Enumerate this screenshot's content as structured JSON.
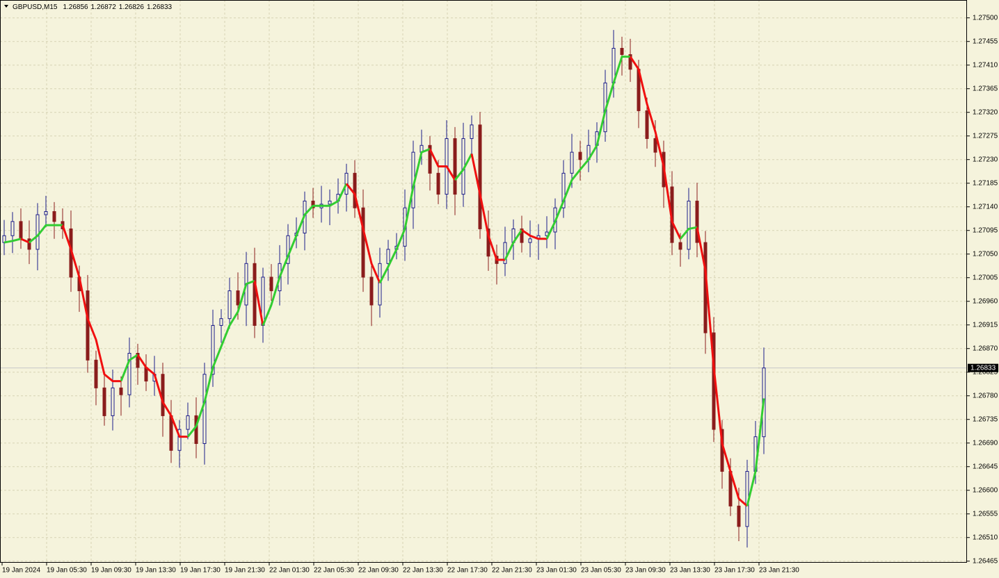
{
  "chart_data": {
    "type": "candlestick",
    "symbol": "GBPUSD,M15",
    "quote": [
      "1.26856",
      "1.26872",
      "1.26826",
      "1.26833"
    ],
    "current_price": {
      "value": 1.26833,
      "label": "1.26833"
    },
    "ylim": [
      1.26462,
      1.27534
    ],
    "yticks": [
      {
        "value": 1.275,
        "label": "1.27500"
      },
      {
        "value": 1.27455,
        "label": "1.27455"
      },
      {
        "value": 1.2741,
        "label": "1.27410"
      },
      {
        "value": 1.27365,
        "label": "1.27365"
      },
      {
        "value": 1.2732,
        "label": "1.27320"
      },
      {
        "value": 1.27275,
        "label": "1.27275"
      },
      {
        "value": 1.2723,
        "label": "1.27230"
      },
      {
        "value": 1.27185,
        "label": "1.27185"
      },
      {
        "value": 1.2714,
        "label": "1.27140"
      },
      {
        "value": 1.27095,
        "label": "1.27095"
      },
      {
        "value": 1.2705,
        "label": "1.27050"
      },
      {
        "value": 1.27005,
        "label": "1.27005"
      },
      {
        "value": 1.2696,
        "label": "1.26960"
      },
      {
        "value": 1.26915,
        "label": "1.26915"
      },
      {
        "value": 1.2687,
        "label": "1.26870"
      },
      {
        "value": 1.26825,
        "label": "1.26825"
      },
      {
        "value": 1.2678,
        "label": "1.26780"
      },
      {
        "value": 1.26735,
        "label": "1.26735"
      },
      {
        "value": 1.2669,
        "label": "1.26690"
      },
      {
        "value": 1.26645,
        "label": "1.26645"
      },
      {
        "value": 1.266,
        "label": "1.26600"
      },
      {
        "value": 1.26555,
        "label": "1.26555"
      },
      {
        "value": 1.2651,
        "label": "1.26510"
      },
      {
        "value": 1.26465,
        "label": "1.26465"
      }
    ],
    "xtick_labels": [
      "19 Jan 2024",
      "19 Jan 05:30",
      "19 Jan 09:30",
      "19 Jan 13:30",
      "19 Jan 17:30",
      "19 Jan 21:30",
      "22 Jan 01:30",
      "22 Jan 05:30",
      "22 Jan 09:30",
      "22 Jan 13:30",
      "22 Jan 17:30",
      "22 Jan 21:30",
      "23 Jan 01:30",
      "23 Jan 05:30",
      "23 Jan 09:30",
      "23 Jan 13:30",
      "23 Jan 17:30",
      "23 Jan 21:30"
    ],
    "bull_color": "#1c1c8a",
    "bear_color": "#8a1c1c",
    "grid": true,
    "open": [
      1.27072,
      1.27085,
      1.27112,
      1.27079,
      1.27059,
      1.27125,
      1.27131,
      1.27112,
      1.27098,
      1.27006,
      1.2698,
      1.26848,
      1.26795,
      1.26742,
      1.26795,
      1.26782,
      1.26861,
      1.26834,
      1.26808,
      1.26821,
      1.26742,
      1.26676,
      1.26716,
      1.26742,
      1.26689,
      1.26821,
      1.26914,
      1.26927,
      1.2698,
      1.26953,
      1.27032,
      1.26914,
      1.27006,
      1.2698,
      1.27032,
      1.27085,
      1.2709,
      1.27151,
      1.27138,
      1.27145,
      1.27151,
      1.27164,
      1.27204,
      1.27138,
      1.27006,
      1.26953,
      1.27032,
      1.27059,
      1.27065,
      1.27138,
      1.27244,
      1.27257,
      1.27204,
      1.27164,
      1.2727,
      1.27164,
      1.2727,
      1.27296,
      1.27098,
      1.27046,
      1.27032,
      1.27072,
      1.27098,
      1.27072,
      1.27079,
      1.27085,
      1.27092,
      1.27138,
      1.27204,
      1.27244,
      1.2723,
      1.27257,
      1.27283,
      1.27376,
      1.27442,
      1.2743,
      1.27402,
      1.27323,
      1.2727,
      1.27244,
      1.27178,
      1.27072,
      1.27059,
      1.27151,
      1.27072,
      1.269,
      1.26716,
      1.26636,
      1.2657,
      1.26531,
      1.26636,
      1.26702
    ],
    "high": [
      1.27115,
      1.2713,
      1.27137,
      1.27114,
      1.27147,
      1.27161,
      1.27149,
      1.27137,
      1.27133,
      1.27028,
      1.2701,
      1.26866,
      1.2682,
      1.2683,
      1.26817,
      1.26891,
      1.26879,
      1.26859,
      1.26856,
      1.26843,
      1.26772,
      1.26734,
      1.26767,
      1.26777,
      1.26843,
      1.26944,
      1.26945,
      1.27005,
      1.27015,
      1.27054,
      1.27062,
      1.27024,
      1.27031,
      1.27067,
      1.27107,
      1.2712,
      1.27169,
      1.27176,
      1.2718,
      1.27173,
      1.27194,
      1.27222,
      1.27229,
      1.27173,
      1.27028,
      1.27062,
      1.27077,
      1.2709,
      1.27173,
      1.27266,
      1.27287,
      1.27275,
      1.27229,
      1.27305,
      1.27292,
      1.273,
      1.27314,
      1.27321,
      1.27133,
      1.27068,
      1.27102,
      1.27116,
      1.27123,
      1.27114,
      1.27107,
      1.27122,
      1.27156,
      1.27229,
      1.27279,
      1.27266,
      1.27287,
      1.27301,
      1.27401,
      1.27477,
      1.27464,
      1.2746,
      1.2742,
      1.27348,
      1.27305,
      1.27266,
      1.27208,
      1.2709,
      1.27176,
      1.27186,
      1.27094,
      1.2693,
      1.26734,
      1.26661,
      1.26605,
      1.26658,
      1.26732,
      1.26872
    ],
    "low": [
      1.27048,
      1.27052,
      1.2706,
      1.27031,
      1.27019,
      1.27101,
      1.27079,
      1.27079,
      1.26978,
      1.2694,
      1.26824,
      1.26762,
      1.26723,
      1.26714,
      1.26742,
      1.26758,
      1.26801,
      1.26789,
      1.2678,
      1.26702,
      1.26652,
      1.26643,
      1.26697,
      1.26661,
      1.26649,
      1.26797,
      1.26881,
      1.26908,
      1.26925,
      1.26913,
      1.2689,
      1.26881,
      1.26961,
      1.26952,
      1.26992,
      1.27061,
      1.27057,
      1.27119,
      1.2711,
      1.27105,
      1.27127,
      1.27131,
      1.27119,
      1.26978,
      1.26913,
      1.26929,
      1.26999,
      1.2704,
      1.27037,
      1.27098,
      1.2722,
      1.27171,
      1.27145,
      1.27136,
      1.27124,
      1.2714,
      1.27237,
      1.27079,
      1.27018,
      1.26992,
      1.27008,
      1.27039,
      1.27053,
      1.27044,
      1.27039,
      1.27061,
      1.27059,
      1.27119,
      1.27176,
      1.2719,
      1.27206,
      1.27224,
      1.27264,
      1.27348,
      1.2739,
      1.27378,
      1.2729,
      1.27251,
      1.27216,
      1.27138,
      1.27048,
      1.27026,
      1.2704,
      1.27044,
      1.2686,
      1.26692,
      1.26603,
      1.26551,
      1.26503,
      1.26491,
      1.26612,
      1.26669
    ],
    "close": [
      1.27085,
      1.27112,
      1.27079,
      1.27059,
      1.27125,
      1.27131,
      1.27112,
      1.27098,
      1.27006,
      1.2698,
      1.26848,
      1.26795,
      1.26742,
      1.26795,
      1.26782,
      1.26861,
      1.26834,
      1.26808,
      1.26821,
      1.26742,
      1.26676,
      1.26716,
      1.26742,
      1.26689,
      1.26821,
      1.26914,
      1.26927,
      1.2698,
      1.26953,
      1.27032,
      1.26914,
      1.27006,
      1.2698,
      1.27032,
      1.27085,
      1.2709,
      1.27151,
      1.27138,
      1.27145,
      1.27151,
      1.27164,
      1.27204,
      1.27138,
      1.27006,
      1.26953,
      1.27032,
      1.27059,
      1.27065,
      1.27138,
      1.27244,
      1.27257,
      1.27204,
      1.27164,
      1.2727,
      1.27164,
      1.2727,
      1.27296,
      1.27098,
      1.27046,
      1.27032,
      1.27072,
      1.27098,
      1.27072,
      1.27079,
      1.27085,
      1.27092,
      1.27138,
      1.27204,
      1.27244,
      1.2723,
      1.27257,
      1.27283,
      1.27376,
      1.27442,
      1.2743,
      1.27402,
      1.27323,
      1.2727,
      1.27244,
      1.27178,
      1.27072,
      1.27059,
      1.27151,
      1.27072,
      1.269,
      1.26716,
      1.26636,
      1.2657,
      1.26531,
      1.26636,
      1.26702,
      1.26833
    ],
    "indicator": {
      "up_color": "#32cd32",
      "down_color": "#f01010",
      "values": [
        1.27072,
        1.27075,
        1.27079,
        1.27072,
        1.27085,
        1.27105,
        1.27105,
        1.27105,
        1.27059,
        1.27006,
        1.26927,
        1.26887,
        1.26821,
        1.26808,
        1.26808,
        1.26848,
        1.26858,
        1.26834,
        1.26821,
        1.26768,
        1.26742,
        1.26702,
        1.26702,
        1.26722,
        1.26768,
        1.26834,
        1.26874,
        1.26914,
        1.2694,
        1.26993,
        1.26999,
        1.26914,
        1.26953,
        1.27006,
        1.27046,
        1.27085,
        1.27125,
        1.27142,
        1.27142,
        1.27142,
        1.27151,
        1.27184,
        1.27164,
        1.27098,
        1.27032,
        1.26995,
        1.27026,
        1.27059,
        1.27098,
        1.27178,
        1.27244,
        1.2725,
        1.27217,
        1.27217,
        1.27191,
        1.27211,
        1.27241,
        1.27164,
        1.27085,
        1.27039,
        1.27039,
        1.27072,
        1.27096,
        1.27085,
        1.27079,
        1.27079,
        1.27112,
        1.27151,
        1.27191,
        1.27211,
        1.2723,
        1.27257,
        1.27323,
        1.27376,
        1.27426,
        1.27426,
        1.27402,
        1.27336,
        1.27283,
        1.27217,
        1.27112,
        1.27079,
        1.27098,
        1.27101,
        1.27019,
        1.26834,
        1.26689,
        1.26636,
        1.26584,
        1.2657,
        1.26636,
        1.26775
      ]
    }
  }
}
